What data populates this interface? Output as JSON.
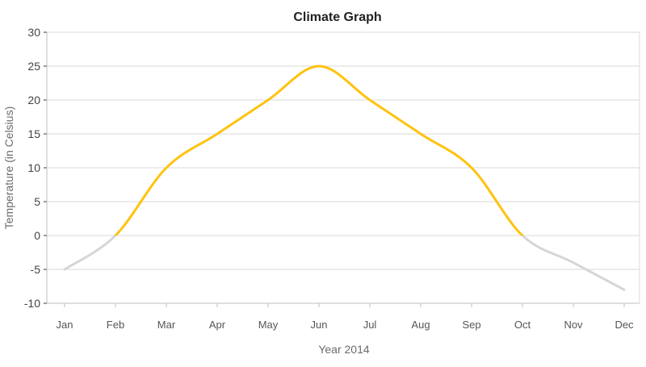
{
  "chart_data": {
    "type": "line",
    "title": "Climate Graph",
    "xlabel": "Year 2014",
    "ylabel": "Temperature (in Celsius)",
    "categories": [
      "Jan",
      "Feb",
      "Mar",
      "Apr",
      "May",
      "Jun",
      "Jul",
      "Aug",
      "Sep",
      "Oct",
      "Nov",
      "Dec"
    ],
    "series": [
      {
        "values": [
          -5,
          0,
          10,
          15,
          20,
          25,
          20,
          15,
          10,
          0,
          -4,
          -8
        ]
      }
    ],
    "ylim": [
      -10,
      30
    ],
    "yticks": [
      -10,
      -5,
      0,
      5,
      10,
      15,
      20,
      25,
      30
    ],
    "grid": true,
    "colors": {
      "above_zero": "#FFC20E",
      "below_zero": "#D6D6D6",
      "grid": "#D9D9D9",
      "axis": "#BFBFBF"
    }
  }
}
